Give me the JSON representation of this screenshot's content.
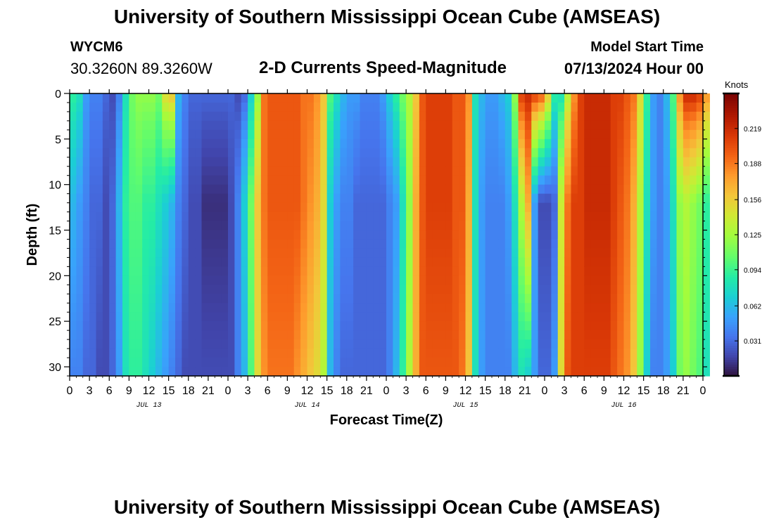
{
  "header": {
    "title": "University of Southern Mississippi Ocean Cube (AMSEAS)",
    "station_id": "WYCM6",
    "coordinates": "30.3260N  89.3260W",
    "subtitle": "2-D Currents Speed-Magnitude",
    "start_label": "Model Start Time",
    "start_value": "07/13/2024 Hour 00"
  },
  "footer": {
    "title": "University of Southern Mississippi Ocean Cube (AMSEAS)"
  },
  "chart_data": {
    "type": "heatmap",
    "title": "2-D Currents Speed-Magnitude",
    "xlabel": "Forecast Time(Z)",
    "ylabel": "Depth (ft)",
    "x_hours_range": [
      0,
      96
    ],
    "x_tick_step_hours": 3,
    "x_tick_labels": [
      "0",
      "3",
      "6",
      "9",
      "12",
      "15",
      "18",
      "21",
      "0",
      "3",
      "6",
      "9",
      "12",
      "15",
      "18",
      "21",
      "0",
      "3",
      "6",
      "9",
      "12",
      "15",
      "18",
      "21",
      "0",
      "3",
      "6",
      "9",
      "12",
      "15",
      "18",
      "21",
      "0"
    ],
    "day_labels": [
      {
        "hour": 12,
        "label": "JUL 13"
      },
      {
        "hour": 36,
        "label": "JUL 14"
      },
      {
        "hour": 60,
        "label": "JUL 15"
      },
      {
        "hour": 84,
        "label": "JUL 16"
      }
    ],
    "ylim": [
      0,
      31
    ],
    "y_ticks": [
      0,
      5,
      10,
      15,
      20,
      25,
      30
    ],
    "colorbar": {
      "unit": "Knots",
      "range": [
        0,
        0.25
      ],
      "ticks": [
        "0.031",
        "0.062",
        "0.094",
        "0.125",
        "0.156",
        "0.188",
        "0.219"
      ],
      "tick_values": [
        0.031,
        0.062,
        0.094,
        0.125,
        0.156,
        0.188,
        0.219
      ]
    },
    "time_step_hours": 1,
    "depth_step_ft": 1,
    "depth_profile_breakpoints": [
      0,
      2,
      3,
      5,
      8,
      10,
      12,
      15,
      20,
      25,
      31
    ],
    "surface_speed_knots": [
      0.09,
      0.08,
      0.05,
      0.04,
      0.04,
      0.03,
      0.02,
      0.04,
      0.08,
      0.11,
      0.12,
      0.12,
      0.12,
      0.11,
      0.15,
      0.16,
      0.06,
      0.04,
      0.03,
      0.03,
      0.03,
      0.03,
      0.03,
      0.03,
      0.03,
      0.02,
      0.03,
      0.07,
      0.12,
      0.19,
      0.2,
      0.2,
      0.2,
      0.2,
      0.2,
      0.19,
      0.19,
      0.18,
      0.16,
      0.1,
      0.08,
      0.06,
      0.05,
      0.05,
      0.04,
      0.04,
      0.04,
      0.05,
      0.07,
      0.09,
      0.11,
      0.13,
      0.16,
      0.2,
      0.21,
      0.21,
      0.21,
      0.21,
      0.2,
      0.2,
      0.18,
      0.08,
      0.06,
      0.05,
      0.05,
      0.06,
      0.07,
      0.12,
      0.21,
      0.22,
      0.21,
      0.2,
      0.16,
      0.09,
      0.08,
      0.13,
      0.18,
      0.21,
      0.22,
      0.22,
      0.22,
      0.22,
      0.21,
      0.21,
      0.2,
      0.19,
      0.15,
      0.09,
      0.05,
      0.04,
      0.06,
      0.1,
      0.18,
      0.22,
      0.22,
      0.21,
      0.18
    ],
    "mid_speed_knots": [
      0.06,
      0.05,
      0.04,
      0.03,
      0.03,
      0.02,
      0.03,
      0.06,
      0.09,
      0.1,
      0.1,
      0.09,
      0.09,
      0.08,
      0.07,
      0.06,
      0.04,
      0.03,
      0.02,
      0.02,
      0.01,
      0.01,
      0.01,
      0.01,
      0.02,
      0.04,
      0.07,
      0.11,
      0.16,
      0.19,
      0.2,
      0.2,
      0.2,
      0.2,
      0.2,
      0.19,
      0.18,
      0.17,
      0.15,
      0.07,
      0.05,
      0.04,
      0.04,
      0.03,
      0.03,
      0.03,
      0.03,
      0.03,
      0.04,
      0.05,
      0.08,
      0.12,
      0.17,
      0.2,
      0.21,
      0.21,
      0.21,
      0.21,
      0.2,
      0.2,
      0.17,
      0.08,
      0.05,
      0.04,
      0.04,
      0.04,
      0.05,
      0.08,
      0.13,
      0.17,
      0.05,
      0.02,
      0.02,
      0.03,
      0.14,
      0.19,
      0.21,
      0.21,
      0.22,
      0.22,
      0.22,
      0.22,
      0.21,
      0.2,
      0.19,
      0.17,
      0.13,
      0.08,
      0.05,
      0.04,
      0.05,
      0.08,
      0.12,
      0.13,
      0.12,
      0.11,
      0.09
    ],
    "bottom_speed_knots": [
      0.04,
      0.04,
      0.03,
      0.03,
      0.02,
      0.02,
      0.03,
      0.05,
      0.08,
      0.09,
      0.09,
      0.08,
      0.07,
      0.06,
      0.05,
      0.04,
      0.03,
      0.02,
      0.02,
      0.02,
      0.02,
      0.02,
      0.02,
      0.02,
      0.02,
      0.04,
      0.06,
      0.1,
      0.15,
      0.18,
      0.19,
      0.19,
      0.19,
      0.19,
      0.18,
      0.17,
      0.16,
      0.15,
      0.13,
      0.06,
      0.04,
      0.03,
      0.03,
      0.03,
      0.03,
      0.03,
      0.03,
      0.03,
      0.04,
      0.06,
      0.09,
      0.13,
      0.17,
      0.2,
      0.2,
      0.2,
      0.2,
      0.2,
      0.2,
      0.19,
      0.16,
      0.08,
      0.05,
      0.04,
      0.04,
      0.04,
      0.04,
      0.06,
      0.08,
      0.07,
      0.05,
      0.03,
      0.03,
      0.05,
      0.15,
      0.2,
      0.21,
      0.21,
      0.21,
      0.21,
      0.21,
      0.21,
      0.2,
      0.19,
      0.18,
      0.16,
      0.12,
      0.07,
      0.04,
      0.04,
      0.05,
      0.07,
      0.11,
      0.12,
      0.11,
      0.1,
      0.08
    ]
  }
}
